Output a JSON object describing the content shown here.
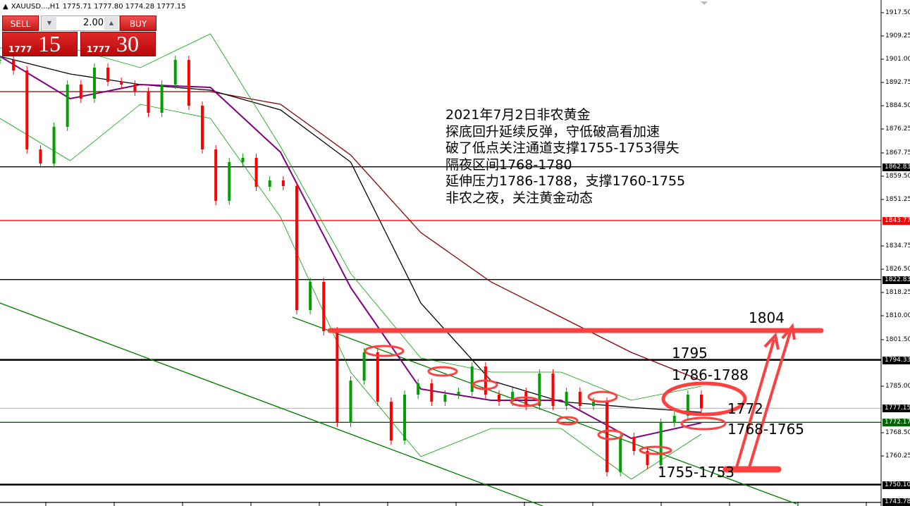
{
  "header": {
    "symbol": "XAUUSD...,H1",
    "ohlc": "1775.71 1777.80 1774.28 1777.15"
  },
  "trade_panel": {
    "sell_label": "SELL",
    "buy_label": "BUY",
    "lot_value": "2.00",
    "sell_price_prefix": "1777",
    "sell_price_big": "15",
    "buy_price_prefix": "1777",
    "buy_price_big": "30"
  },
  "annotation_text": [
    "2021年7月2日非农黄金",
    "探底回升延续反弹，守低破高看加速",
    "破了低点关注通道支撑1755-1753得失",
    "隔夜区间1768-1780",
    "延伸压力1786-1788，支撑1760-1755",
    "非农之夜，关注黄金动态"
  ],
  "level_labels": {
    "l1804": "1804",
    "l1795": "1795",
    "l1786": "1786-1788",
    "l1772": "1772",
    "l1768": "1768-1765",
    "l1755": "1755-1753"
  },
  "colors": {
    "up": "#00a000",
    "down": "#ff0000",
    "ma_slow": "#8b0000",
    "ma_mid": "#000000",
    "ma_fast": "#800080",
    "bands": "#00a000",
    "annotation": "#ff4040"
  },
  "chart_data": {
    "type": "candlestick",
    "title": "",
    "ylim": [
      1741.5,
      1921.5
    ],
    "yticks": [
      "1917.50",
      "1909.25",
      "1901.00",
      "1892.75",
      "1884.50",
      "1876.25",
      "1867.75",
      "1859.50",
      "1851.25",
      "1834.75",
      "1826.50",
      "1818.25",
      "1810.00",
      "1801.50",
      "1785.00",
      "1768.50",
      "1760.25"
    ],
    "closes": [
      1900.75,
      1897,
      1869,
      1864,
      1877,
      1892,
      1887,
      1898,
      1893,
      1892,
      1889.5,
      1882,
      1892,
      1900.75,
      1884.5,
      1869,
      1850.75,
      1864.5,
      1866,
      1855.75,
      1858,
      1856,
      1812,
      1822,
      1804.5,
      1772,
      1787,
      1797,
      1779.5,
      1765.75,
      1782,
      1786,
      1779.5,
      1782,
      1783,
      1792,
      1782,
      1779.5,
      1783,
      1778,
      1789.5,
      1778,
      1783,
      1778,
      1779.5,
      1754.5,
      1767,
      1762,
      1757,
      1772,
      1774.5,
      1782,
      1777.15
    ],
    "series": [
      {
        "key": "ma_slow",
        "values": [
          1889.5,
          1889.5,
          1889.5,
          1889.5,
          1885,
          1867,
          1839.5,
          1822,
          1809.5,
          1797,
          1787
        ]
      },
      {
        "key": "ma_mid",
        "values": [
          1902,
          1895.75,
          1892,
          1890,
          1883,
          1864.5,
          1814.5,
          1787,
          1779.5,
          1777.5,
          1775.75
        ]
      },
      {
        "key": "ma_fast",
        "values": [
          1902,
          1887,
          1892,
          1891,
          1868,
          1820,
          1784,
          1780,
          1780,
          1766.5,
          1772
        ]
      },
      {
        "key": "band_upper",
        "values": [
          1905,
          1905,
          1898,
          1910,
          1870,
          1825,
          1795,
          1790,
          1790,
          1780,
          1785
        ]
      },
      {
        "key": "band_lower",
        "values": [
          1880,
          1865,
          1885,
          1880,
          1845,
          1790,
          1760,
          1770,
          1770,
          1752,
          1768
        ]
      }
    ],
    "horizontal_lines": [
      {
        "price": "1862.83",
        "color": "#000000"
      },
      {
        "price": "1843.77",
        "color": "#ff0000"
      },
      {
        "price": "1822.83",
        "color": "#000000"
      },
      {
        "price": "1794.33",
        "color": "#000000"
      },
      {
        "price": "1777.15",
        "color": "#c0c0c0"
      },
      {
        "price": "1772.17",
        "color": "#006400"
      },
      {
        "price": "1750.10",
        "color": "#000000"
      },
      {
        "price": "1743.78",
        "color": "#000000"
      }
    ]
  }
}
